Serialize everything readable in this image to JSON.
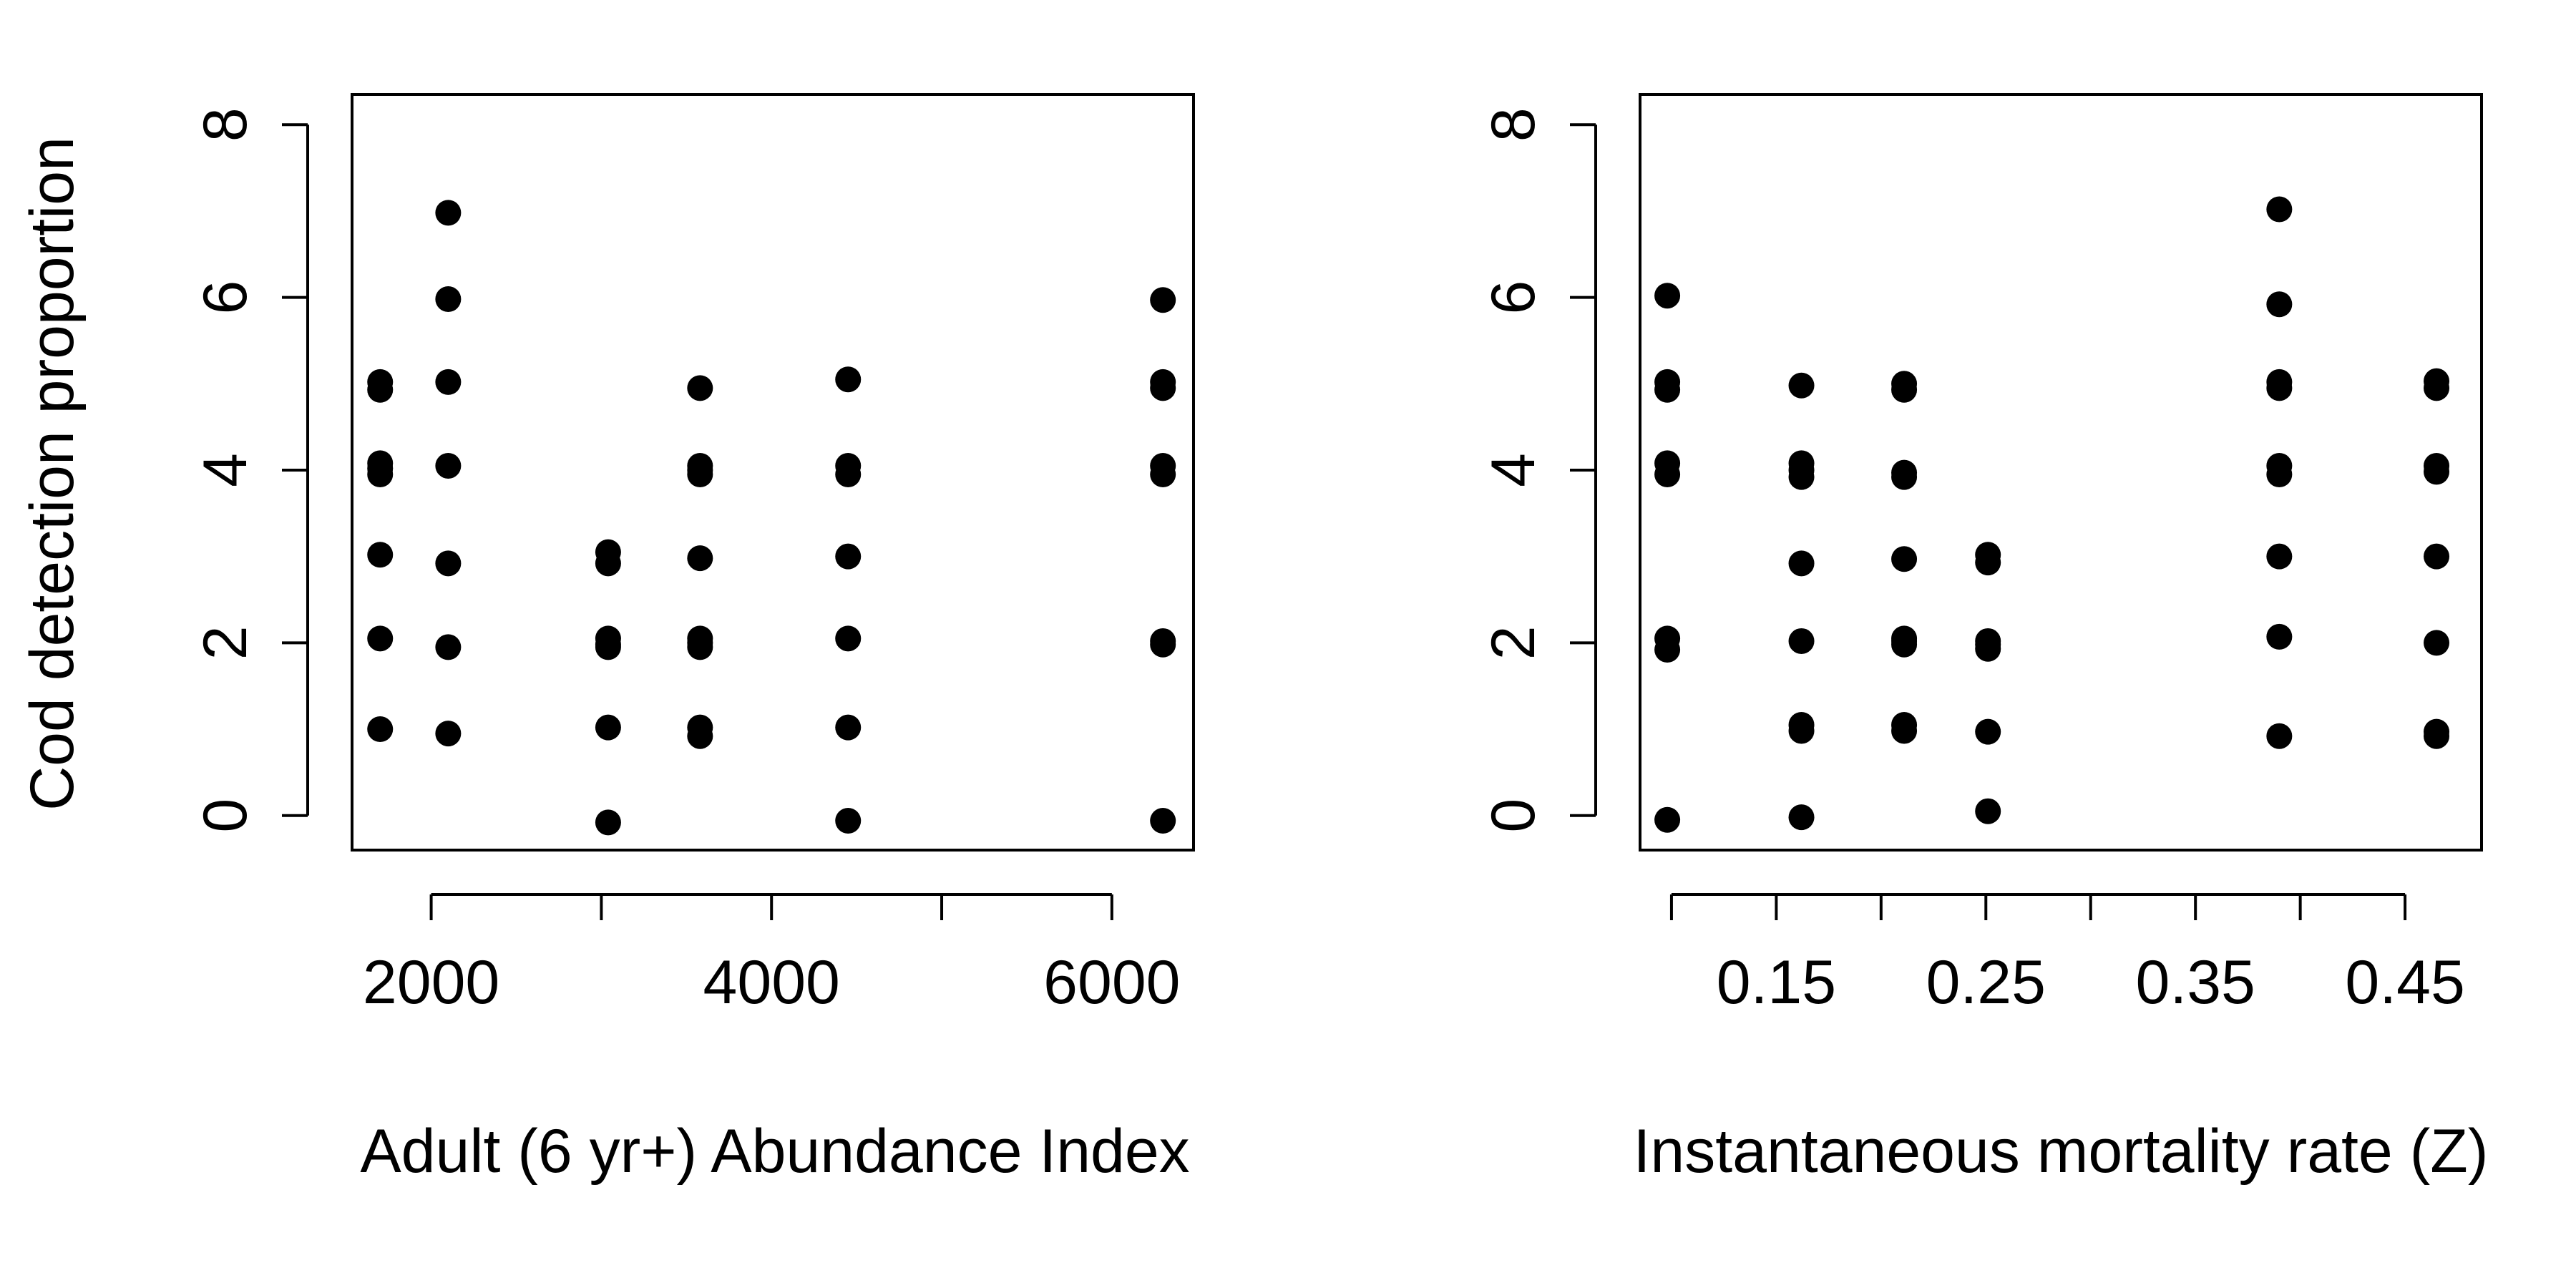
{
  "shared_ylabel": "Cod detection proportion",
  "chart_data": [
    {
      "type": "scatter",
      "title": "",
      "xlabel": "Adult (6 yr+) Abundance Index",
      "ylabel": "Cod detection proportion",
      "xlim": [
        1535,
        6480
      ],
      "ylim": [
        -0.4,
        8.35
      ],
      "x_ticks": [
        2000,
        3000,
        4000,
        5000,
        6000
      ],
      "x_tick_labels": [
        "2000",
        "",
        "4000",
        "",
        "6000"
      ],
      "y_ticks": [
        0,
        2,
        4,
        6,
        8
      ],
      "y_tick_labels": [
        "0",
        "2",
        "4",
        "6",
        "8"
      ],
      "grid": false,
      "x": [
        1700,
        1700,
        1700,
        1700,
        1700,
        1700,
        1700,
        1700,
        2100,
        2100,
        2100,
        2100,
        2100,
        2100,
        2100,
        3040,
        3040,
        3040,
        3040,
        3040,
        3040,
        3040,
        3580,
        3580,
        3580,
        3580,
        3580,
        3580,
        3580,
        3580,
        3580,
        3580,
        4450,
        4450,
        4450,
        4450,
        4450,
        4450,
        4450,
        6300,
        6300,
        6300,
        6300,
        6300,
        6300,
        6300,
        6300
      ],
      "y": [
        1.0,
        2.05,
        3.02,
        3.95,
        4.08,
        4.93,
        5.02,
        4.02,
        0.95,
        1.95,
        2.92,
        4.05,
        5.02,
        5.98,
        6.98,
        -0.08,
        1.02,
        1.95,
        2.05,
        2.92,
        3.05,
        1.98,
        0.92,
        1.02,
        1.95,
        2.05,
        2.98,
        3.95,
        4.05,
        4.95,
        2.0,
        4.0,
        -0.06,
        1.02,
        2.05,
        3.0,
        3.95,
        4.05,
        5.05,
        -0.06,
        1.98,
        2.02,
        3.95,
        4.05,
        4.95,
        5.02,
        5.97
      ]
    },
    {
      "type": "scatter",
      "title": "",
      "xlabel": "Instantaneous mortality rate (Z)",
      "ylabel": "",
      "xlim": [
        0.085,
        0.4865
      ],
      "ylim": [
        -0.4,
        8.35
      ],
      "x_ticks": [
        0.1,
        0.15,
        0.2,
        0.25,
        0.3,
        0.35,
        0.4,
        0.45
      ],
      "x_tick_labels": [
        "",
        "0.15",
        "",
        "0.25",
        "",
        "0.35",
        "",
        "0.45"
      ],
      "y_ticks": [
        0,
        2,
        4,
        6,
        8
      ],
      "y_tick_labels": [
        "0",
        "2",
        "4",
        "6",
        "8"
      ],
      "grid": false,
      "x": [
        0.098,
        0.098,
        0.098,
        0.098,
        0.098,
        0.098,
        0.098,
        0.098,
        0.162,
        0.162,
        0.162,
        0.162,
        0.162,
        0.162,
        0.162,
        0.162,
        0.162,
        0.211,
        0.211,
        0.211,
        0.211,
        0.211,
        0.211,
        0.211,
        0.211,
        0.211,
        0.211,
        0.251,
        0.251,
        0.251,
        0.251,
        0.251,
        0.251,
        0.251,
        0.39,
        0.39,
        0.39,
        0.39,
        0.39,
        0.39,
        0.39,
        0.39,
        0.39,
        0.465,
        0.465,
        0.465,
        0.465,
        0.465,
        0.465,
        0.465,
        0.465
      ],
      "y": [
        -0.05,
        1.92,
        2.05,
        3.95,
        4.08,
        4.93,
        5.02,
        6.02,
        -0.02,
        0.98,
        1.05,
        2.02,
        2.92,
        3.92,
        4.08,
        4.98,
        4.0,
        0.98,
        1.05,
        1.98,
        2.05,
        2.97,
        3.92,
        3.97,
        4.93,
        5.0,
        2.02,
        0.05,
        0.97,
        1.93,
        2.02,
        2.93,
        3.02,
        1.98,
        0.92,
        2.07,
        3.0,
        3.95,
        4.05,
        4.95,
        5.02,
        5.92,
        7.02,
        0.92,
        0.97,
        2.0,
        3.0,
        3.98,
        4.05,
        4.95,
        5.03
      ]
    }
  ]
}
